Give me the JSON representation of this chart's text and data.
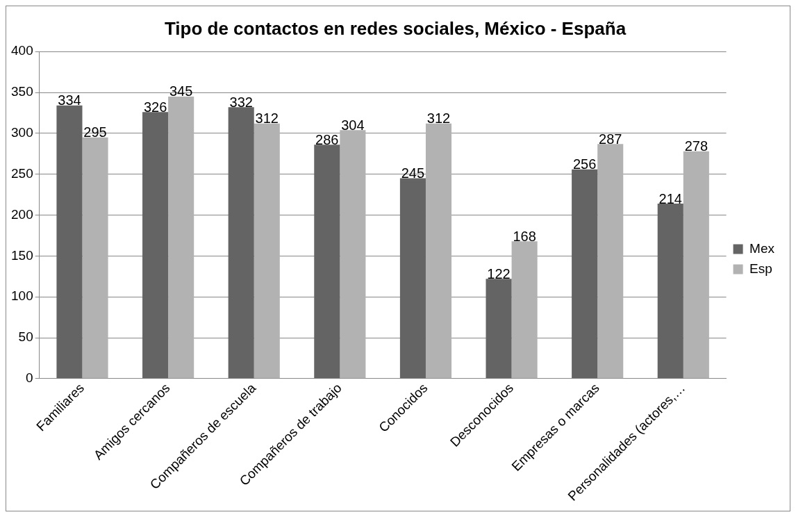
{
  "chart_data": {
    "type": "bar",
    "title": "Tipo de contactos en redes sociales, México - España",
    "categories": [
      "Familiares",
      "Amigos cercanos",
      "Compañeros de escuela",
      "Compañeros de trabajo",
      "Conocidos",
      "Desconocidos",
      "Empresas o marcas",
      "Personalidades (actores,…"
    ],
    "series": [
      {
        "name": "Mex",
        "color": "#646464",
        "values": [
          334,
          326,
          332,
          286,
          245,
          122,
          256,
          214
        ]
      },
      {
        "name": "Esp",
        "color": "#b2b2b2",
        "values": [
          295,
          345,
          312,
          304,
          312,
          168,
          287,
          278
        ]
      }
    ],
    "ylim": [
      0,
      400
    ],
    "yticks": [
      0,
      50,
      100,
      150,
      200,
      250,
      300,
      350,
      400
    ],
    "grid": "y",
    "legend": "right",
    "data_labels": true
  }
}
